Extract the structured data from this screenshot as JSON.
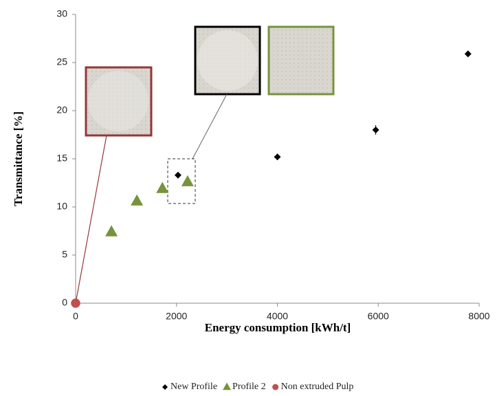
{
  "chart_data": {
    "type": "scatter",
    "xlabel": "Energy consumption  [kWh/t]",
    "ylabel": "Transmittance  [%]",
    "xlim": [
      0,
      8000
    ],
    "xticks": [
      0,
      2000,
      4000,
      6000,
      8000
    ],
    "ylim": [
      0,
      30
    ],
    "yticks": [
      0,
      5,
      10,
      15,
      20,
      25,
      30
    ],
    "grid": false,
    "legend": "bottom",
    "series": [
      {
        "name": "New Profile",
        "color": "#000000",
        "marker": "diamond",
        "x": [
          2030,
          4000,
          5950,
          7780
        ],
        "values": [
          13.3,
          15.2,
          18.0,
          25.9
        ],
        "errors": [
          0.3,
          0.3,
          0.5,
          0.2
        ]
      },
      {
        "name": "Profile  2",
        "color": "#77933c",
        "marker": "triangle",
        "x": [
          710,
          1215,
          1720,
          2220
        ],
        "values": [
          7.4,
          10.6,
          11.9,
          12.6
        ]
      },
      {
        "name": "Non extruded Pulp",
        "color": "#c0504d",
        "marker": "circle",
        "x": [
          0
        ],
        "values": [
          0
        ]
      }
    ]
  }
}
